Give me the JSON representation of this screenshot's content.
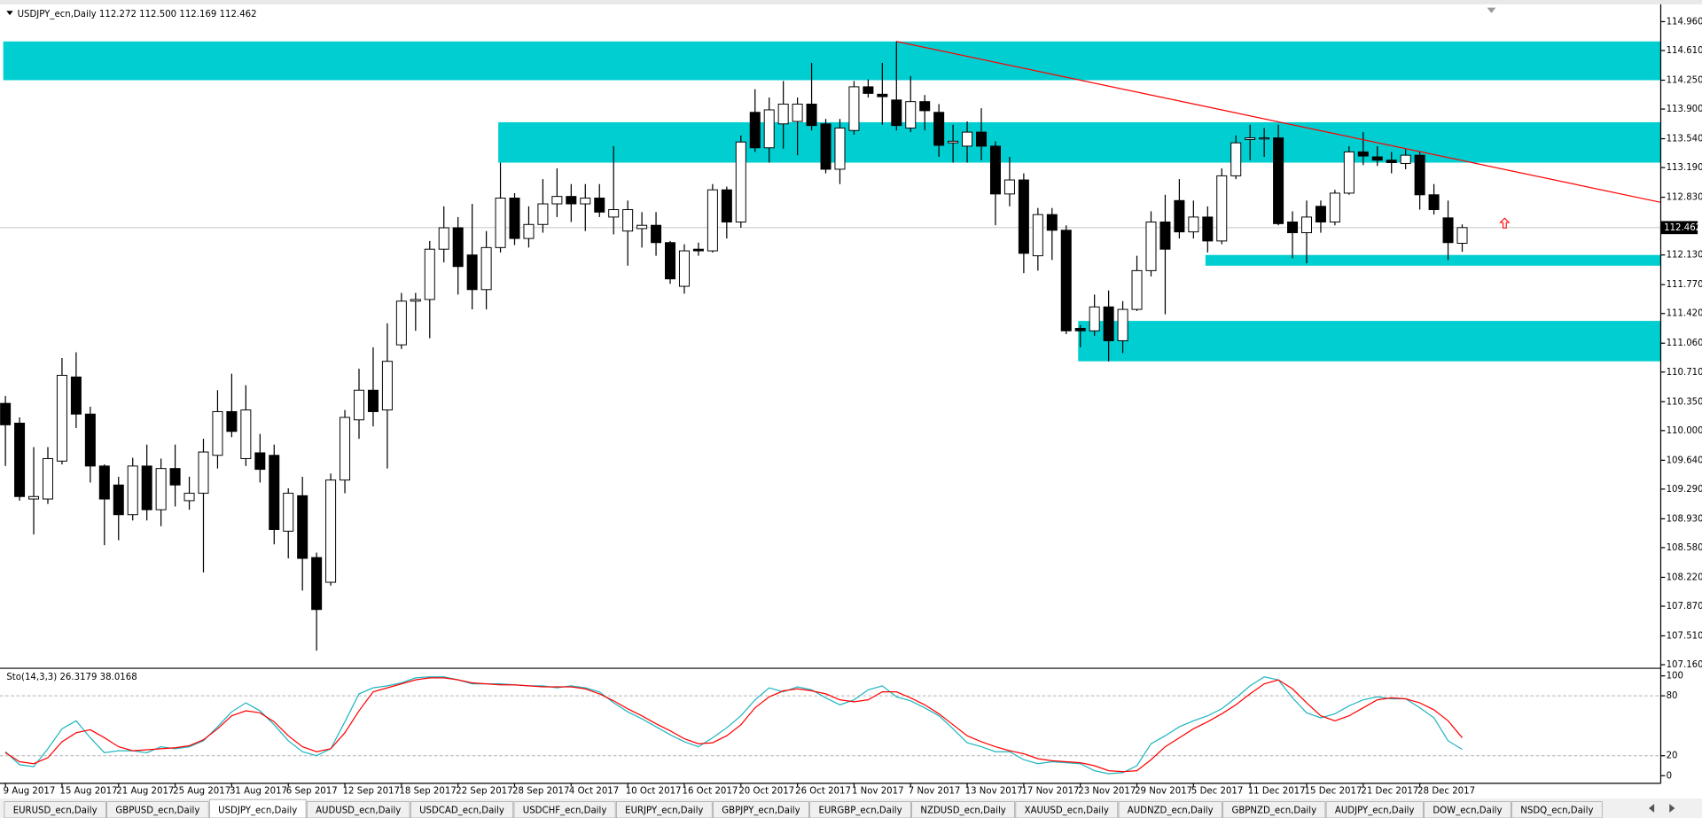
{
  "chart_data": [
    {
      "type": "candlestick",
      "title": "USDJPY_ecn,Daily 112.272 112.500 112.169 112.462",
      "categories": [
        "9 Aug 2017",
        null,
        null,
        null,
        "15 Aug 2017",
        null,
        null,
        null,
        "21 Aug 2017",
        null,
        null,
        null,
        "25 Aug 2017",
        null,
        null,
        null,
        "31 Aug 2017",
        null,
        null,
        null,
        "6 Sep 2017",
        null,
        null,
        null,
        "12 Sep 2017",
        null,
        null,
        null,
        "18 Sep 2017",
        null,
        null,
        null,
        "22 Sep 2017",
        null,
        null,
        null,
        "28 Sep 2017",
        null,
        null,
        null,
        "4 Oct 2017",
        null,
        null,
        null,
        "10 Oct 2017",
        null,
        null,
        null,
        "16 Oct 2017",
        null,
        null,
        null,
        "20 Oct 2017",
        null,
        null,
        null,
        "26 Oct 2017",
        null,
        null,
        null,
        "1 Nov 2017",
        null,
        null,
        null,
        "7 Nov 2017",
        null,
        null,
        null,
        "13 Nov 2017",
        null,
        null,
        null,
        "17 Nov 2017",
        null,
        null,
        null,
        "23 Nov 2017",
        null,
        null,
        null,
        "29 Nov 2017",
        null,
        null,
        null,
        "5 Dec 2017",
        null,
        null,
        null,
        "11 Dec 2017",
        null,
        null,
        null,
        "15 Dec 2017",
        null,
        null,
        null,
        "21 Dec 2017",
        null,
        null,
        null,
        "28 Dec 2017",
        null,
        null,
        null
      ],
      "open": [
        110.33,
        110.09,
        109.17,
        109.17,
        109.63,
        110.65,
        110.2,
        109.57,
        109.34,
        108.98,
        109.57,
        109.04,
        109.54,
        109.15,
        109.24,
        109.7,
        110.23,
        109.66,
        109.73,
        109.7,
        108.78,
        109.21,
        108.46,
        108.16,
        109.4,
        110.13,
        110.49,
        110.25,
        111.04,
        111.57,
        111.59,
        112.2,
        112.46,
        112.13,
        111.71,
        112.22,
        112.82,
        112.33,
        112.5,
        112.75,
        112.84,
        112.75,
        112.82,
        112.59,
        112.42,
        112.45,
        112.49,
        112.28,
        111.75,
        112.2,
        112.18,
        112.92,
        112.53,
        113.86,
        113.43,
        113.72,
        113.75,
        113.96,
        113.72,
        113.17,
        113.64,
        114.17,
        114.08,
        114.01,
        113.67,
        113.99,
        113.86,
        113.49,
        113.45,
        113.62,
        113.45,
        112.87,
        113.04,
        112.12,
        112.62,
        112.43,
        111.24,
        111.21,
        111.5,
        111.09,
        111.47,
        111.94,
        112.53,
        112.79,
        112.41,
        112.59,
        112.3,
        113.09,
        113.53,
        113.54,
        113.55,
        112.53,
        112.4,
        112.72,
        112.53,
        112.88,
        113.38,
        113.32,
        113.28,
        113.24,
        113.34,
        112.86,
        112.58,
        112.272
      ],
      "high": [
        110.42,
        110.16,
        109.8,
        109.8,
        110.88,
        110.95,
        110.29,
        109.59,
        109.44,
        109.67,
        109.83,
        109.66,
        109.83,
        109.44,
        109.9,
        110.49,
        110.69,
        110.55,
        109.96,
        109.83,
        109.3,
        109.44,
        108.52,
        109.48,
        110.25,
        110.75,
        111.01,
        111.3,
        111.67,
        111.67,
        112.3,
        112.72,
        112.59,
        112.75,
        112.42,
        113.25,
        112.88,
        112.72,
        113.05,
        113.18,
        112.99,
        112.99,
        112.99,
        113.45,
        112.79,
        112.65,
        112.65,
        112.3,
        112.26,
        112.28,
        112.99,
        112.96,
        113.58,
        114.14,
        114.04,
        114.24,
        114.04,
        114.46,
        113.78,
        113.78,
        114.24,
        114.26,
        114.46,
        114.72,
        114.3,
        114.07,
        113.96,
        113.71,
        113.75,
        113.91,
        113.51,
        113.32,
        113.12,
        112.7,
        112.7,
        112.49,
        111.28,
        111.65,
        111.7,
        111.57,
        112.12,
        112.66,
        112.86,
        113.05,
        112.79,
        112.72,
        113.18,
        113.58,
        113.71,
        113.67,
        113.71,
        112.66,
        112.79,
        112.79,
        112.92,
        113.45,
        113.62,
        113.45,
        113.38,
        113.41,
        113.38,
        112.99,
        112.79,
        112.5
      ],
      "low": [
        109.57,
        109.15,
        108.74,
        109.11,
        109.59,
        110.03,
        109.37,
        108.61,
        108.67,
        108.91,
        108.91,
        108.84,
        109.08,
        109.04,
        108.28,
        109.54,
        109.92,
        109.57,
        109.37,
        108.62,
        108.45,
        108.06,
        107.33,
        108.12,
        109.24,
        109.9,
        110.05,
        109.54,
        110.99,
        111.21,
        111.12,
        112.04,
        111.65,
        111.47,
        111.47,
        112.16,
        112.25,
        112.22,
        112.4,
        112.59,
        112.53,
        112.42,
        112.59,
        112.38,
        112.0,
        112.22,
        112.12,
        111.78,
        111.66,
        112.12,
        112.16,
        112.33,
        112.46,
        113.38,
        113.25,
        113.42,
        113.34,
        113.64,
        113.12,
        112.99,
        113.59,
        114.04,
        113.71,
        113.64,
        113.62,
        113.64,
        113.32,
        113.25,
        113.25,
        113.28,
        112.49,
        112.72,
        111.91,
        111.94,
        112.07,
        111.17,
        111.01,
        111.15,
        110.84,
        110.94,
        111.45,
        111.87,
        111.41,
        112.33,
        112.33,
        112.16,
        112.26,
        113.05,
        113.28,
        113.32,
        112.49,
        112.09,
        112.03,
        112.4,
        112.49,
        112.86,
        113.22,
        113.21,
        113.12,
        113.17,
        112.68,
        112.62,
        112.07,
        112.169
      ],
      "close": [
        110.07,
        109.2,
        109.2,
        109.66,
        110.67,
        110.2,
        109.57,
        109.17,
        108.98,
        109.57,
        109.04,
        109.54,
        109.34,
        109.24,
        109.74,
        110.23,
        109.99,
        110.25,
        109.53,
        108.8,
        109.24,
        108.45,
        107.83,
        109.4,
        110.16,
        110.49,
        110.23,
        110.84,
        111.57,
        111.59,
        112.2,
        112.46,
        111.99,
        111.71,
        112.22,
        112.82,
        112.33,
        112.5,
        112.75,
        112.84,
        112.75,
        112.82,
        112.65,
        112.68,
        112.68,
        112.49,
        112.28,
        111.84,
        112.18,
        112.18,
        112.92,
        112.53,
        113.5,
        113.43,
        113.89,
        113.96,
        113.96,
        113.7,
        113.17,
        113.67,
        114.17,
        114.09,
        114.05,
        113.7,
        113.99,
        113.88,
        113.46,
        113.51,
        113.62,
        113.45,
        112.87,
        113.04,
        112.15,
        112.62,
        112.43,
        111.21,
        111.21,
        111.5,
        111.09,
        111.47,
        111.94,
        112.53,
        112.2,
        112.41,
        112.59,
        112.3,
        113.09,
        113.49,
        113.55,
        113.55,
        112.51,
        112.4,
        112.59,
        112.53,
        112.88,
        113.38,
        113.33,
        113.28,
        113.25,
        113.34,
        112.86,
        112.68,
        112.28,
        112.462
      ],
      "up_color": "#ffffff",
      "down_color": "#000000",
      "ylim": [
        107.13,
        115.17
      ],
      "yticks": [
        {
          "value": 114.96,
          "label": "114.960"
        },
        {
          "value": 114.61,
          "label": "114.610"
        },
        {
          "value": 114.25,
          "label": "114.250"
        },
        {
          "value": 113.9,
          "label": "113.900"
        },
        {
          "value": 113.54,
          "label": "113.540"
        },
        {
          "value": 113.19,
          "label": "113.190"
        },
        {
          "value": 112.83,
          "label": "112.830"
        },
        {
          "value": 112.13,
          "label": "112.130"
        },
        {
          "value": 111.77,
          "label": "111.770"
        },
        {
          "value": 111.42,
          "label": "111.420"
        },
        {
          "value": 111.06,
          "label": "111.060"
        },
        {
          "value": 110.71,
          "label": "110.710"
        },
        {
          "value": 110.35,
          "label": "110.350"
        },
        {
          "value": 110.0,
          "label": "110.000"
        },
        {
          "value": 109.64,
          "label": "109.640"
        },
        {
          "value": 109.29,
          "label": "109.290"
        },
        {
          "value": 108.93,
          "label": "108.930"
        },
        {
          "value": 108.58,
          "label": "108.580"
        },
        {
          "value": 108.22,
          "label": "108.220"
        },
        {
          "value": 107.87,
          "label": "107.870"
        },
        {
          "value": 107.51,
          "label": "107.510"
        },
        {
          "value": 107.16,
          "label": "107.160"
        }
      ],
      "current_price": {
        "value": 112.462,
        "label": "112.462"
      },
      "zone_color": "#00ced1",
      "zones": [
        {
          "start": 0,
          "high": 114.72,
          "low": 114.25
        },
        {
          "start": 35,
          "high": 113.74,
          "low": 113.25
        },
        {
          "start": 85,
          "high": 112.13,
          "low": 112.0
        },
        {
          "start": 76,
          "high": 111.33,
          "low": 110.84
        }
      ],
      "trendline": {
        "color": "#ff0000",
        "points": [
          {
            "index": 63,
            "price": 114.72
          },
          {
            "index": 117,
            "price": 112.77
          }
        ]
      },
      "arrow": {
        "index": 106,
        "price": 112.51,
        "color": "#ff0000"
      }
    },
    {
      "type": "line",
      "title": "Sto(14,3,3) 26.3179 38.0168",
      "ylim": [
        -7.6,
        106.5
      ],
      "yticks": [
        0,
        20,
        80,
        100
      ],
      "levels": [
        20,
        80
      ],
      "series": [
        {
          "color": "#1fb5c0",
          "values": [
            24,
            11,
            9,
            27,
            47,
            55,
            38,
            23,
            25,
            25,
            23,
            29,
            27,
            29,
            35,
            49,
            64,
            73,
            65,
            51,
            35,
            24,
            20,
            27,
            54,
            82,
            88,
            90,
            93,
            98,
            99,
            99,
            96,
            92,
            92,
            92,
            91,
            90,
            90,
            88,
            90,
            88,
            84,
            73,
            64,
            57,
            49,
            41,
            34,
            29,
            38,
            48,
            60,
            76,
            88,
            84,
            89,
            86,
            78,
            71,
            76,
            86,
            90,
            79,
            75,
            68,
            60,
            47,
            33,
            29,
            24,
            24,
            16,
            12,
            14,
            13,
            12,
            5,
            2,
            3,
            10,
            32,
            40,
            49,
            55,
            60,
            67,
            78,
            90,
            99,
            96,
            78,
            63,
            58,
            62,
            70,
            76,
            79,
            77,
            77,
            68,
            58,
            35,
            26.3179
          ]
        },
        {
          "color": "#ff0000",
          "values": [
            23,
            14,
            12,
            18,
            34,
            43,
            46,
            38,
            29,
            25,
            26,
            27,
            28,
            30,
            36,
            47,
            60,
            65,
            63,
            54,
            40,
            29,
            24,
            27,
            43,
            65,
            84,
            88,
            92,
            96,
            98,
            98,
            96,
            93,
            92,
            91,
            91,
            90,
            89,
            89,
            89,
            87,
            82,
            75,
            67,
            60,
            52,
            45,
            37,
            32,
            33,
            40,
            51,
            68,
            79,
            85,
            87,
            85,
            82,
            76,
            74,
            76,
            84,
            84,
            78,
            71,
            62,
            51,
            40,
            34,
            29,
            25,
            22,
            17,
            15,
            14,
            13,
            10,
            5,
            4,
            5,
            16,
            29,
            38,
            47,
            54,
            62,
            71,
            82,
            92,
            96,
            87,
            73,
            60,
            55,
            60,
            68,
            76,
            78,
            77,
            73,
            66,
            55,
            38.0168
          ]
        }
      ]
    }
  ],
  "tabs": [
    "EURUSD_ecn,Daily",
    "GBPUSD_ecn,Daily",
    "USDJPY_ecn,Daily",
    "AUDUSD_ecn,Daily",
    "USDCAD_ecn,Daily",
    "USDCHF_ecn,Daily",
    "EURJPY_ecn,Daily",
    "GBPJPY_ecn,Daily",
    "EURGBP_ecn,Daily",
    "NZDUSD_ecn,Daily",
    "XAUUSD_ecn,Daily",
    "AUDNZD_ecn,Daily",
    "GBPNZD_ecn,Daily",
    "AUDJPY_ecn,Daily",
    "DOW_ecn,Daily",
    "NSDQ_ecn,Daily"
  ],
  "active_tab": 2
}
